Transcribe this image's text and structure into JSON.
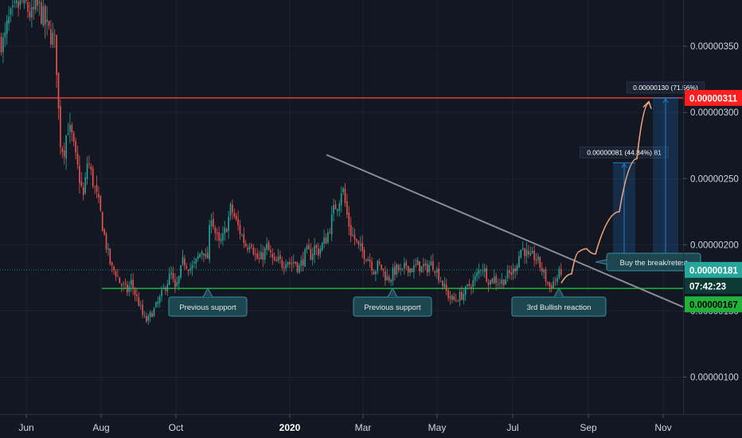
{
  "chart_data": {
    "type": "candlestick",
    "x_axis": {
      "ticks": [
        {
          "label": "Jun",
          "bold": false
        },
        {
          "label": "Aug",
          "bold": false
        },
        {
          "label": "Oct",
          "bold": false
        },
        {
          "label": "2020",
          "bold": true
        },
        {
          "label": "Mar",
          "bold": false
        },
        {
          "label": "May",
          "bold": false
        },
        {
          "label": "Jul",
          "bold": false
        },
        {
          "label": "Sep",
          "bold": false
        },
        {
          "label": "Nov",
          "bold": false
        }
      ]
    },
    "y_axis": {
      "ticks": [
        "0.00000100",
        "0.00000150",
        "0.00000200",
        "0.00000250",
        "0.00000300",
        "0.00000350"
      ],
      "range": [
        7.2e-07,
        3.85e-06
      ]
    },
    "price_close_path": [
      [
        0,
        3.55e-06
      ],
      [
        5,
        3.52e-06
      ],
      [
        10,
        3.68e-06
      ],
      [
        15,
        3.72e-06
      ],
      [
        20,
        3.78e-06
      ],
      [
        25,
        3.82e-06
      ],
      [
        30,
        3.85e-06
      ],
      [
        35,
        3.78e-06
      ],
      [
        40,
        3.72e-06
      ],
      [
        45,
        3.8e-06
      ],
      [
        50,
        3.78e-06
      ],
      [
        55,
        3.7e-06
      ],
      [
        60,
        3.62e-06
      ],
      [
        65,
        3.58e-06
      ],
      [
        70,
        3.5e-06
      ],
      [
        75,
        2.8e-06
      ],
      [
        80,
        2.7e-06
      ],
      [
        85,
        2.9e-06
      ],
      [
        90,
        2.82e-06
      ],
      [
        95,
        2.65e-06
      ],
      [
        100,
        2.5e-06
      ],
      [
        105,
        2.35e-06
      ],
      [
        110,
        2.65e-06
      ],
      [
        115,
        2.52e-06
      ],
      [
        120,
        2.4e-06
      ],
      [
        125,
        2.28e-06
      ],
      [
        130,
        2.1e-06
      ],
      [
        135,
        1.95e-06
      ],
      [
        140,
        1.82e-06
      ],
      [
        145,
        1.8e-06
      ],
      [
        150,
        1.72e-06
      ],
      [
        155,
        1.68e-06
      ],
      [
        160,
        1.65e-06
      ],
      [
        165,
        1.72e-06
      ],
      [
        170,
        1.62e-06
      ],
      [
        175,
        1.55e-06
      ],
      [
        180,
        1.45e-06
      ],
      [
        185,
        1.42e-06
      ],
      [
        190,
        1.48e-06
      ],
      [
        195,
        1.52e-06
      ],
      [
        200,
        1.58e-06
      ],
      [
        205,
        1.65e-06
      ],
      [
        210,
        1.72e-06
      ],
      [
        215,
        1.78e-06
      ],
      [
        220,
        1.65e-06
      ],
      [
        225,
        1.75e-06
      ],
      [
        230,
        1.88e-06
      ],
      [
        235,
        1.85e-06
      ],
      [
        240,
        1.82e-06
      ],
      [
        245,
        1.85e-06
      ],
      [
        250,
        1.92e-06
      ],
      [
        255,
        1.98e-06
      ],
      [
        260,
        1.85e-06
      ],
      [
        265,
        2.25e-06
      ],
      [
        270,
        2.1e-06
      ],
      [
        275,
        2e-06
      ],
      [
        280,
        2.05e-06
      ],
      [
        285,
        2.15e-06
      ],
      [
        290,
        2.28e-06
      ],
      [
        295,
        2.2e-06
      ],
      [
        300,
        2.12e-06
      ],
      [
        305,
        2.05e-06
      ],
      [
        310,
        1.98e-06
      ],
      [
        315,
        2.05e-06
      ],
      [
        320,
        1.92e-06
      ],
      [
        325,
        1.88e-06
      ],
      [
        330,
        1.92e-06
      ],
      [
        335,
        1.98e-06
      ],
      [
        340,
        1.92e-06
      ],
      [
        345,
        1.85e-06
      ],
      [
        350,
        1.88e-06
      ],
      [
        355,
        1.85e-06
      ],
      [
        360,
        1.9e-06
      ],
      [
        365,
        1.85e-06
      ],
      [
        370,
        1.88e-06
      ],
      [
        375,
        1.82e-06
      ],
      [
        380,
        1.88e-06
      ],
      [
        385,
        1.95e-06
      ],
      [
        390,
        1.92e-06
      ],
      [
        395,
        1.98e-06
      ],
      [
        400,
        1.95e-06
      ],
      [
        405,
        2e-06
      ],
      [
        410,
        2.05e-06
      ],
      [
        415,
        2.15e-06
      ],
      [
        420,
        2.28e-06
      ],
      [
        425,
        2.32e-06
      ],
      [
        430,
        2.45e-06
      ],
      [
        435,
        2.25e-06
      ],
      [
        440,
        2.1e-06
      ],
      [
        445,
        2.05e-06
      ],
      [
        450,
        1.98e-06
      ],
      [
        455,
        1.95e-06
      ],
      [
        460,
        1.92e-06
      ],
      [
        465,
        1.88e-06
      ],
      [
        470,
        1.8e-06
      ],
      [
        475,
        1.85e-06
      ],
      [
        480,
        1.82e-06
      ],
      [
        485,
        1.75e-06
      ],
      [
        490,
        1.75e-06
      ],
      [
        495,
        1.8e-06
      ],
      [
        500,
        1.82e-06
      ],
      [
        505,
        1.78e-06
      ],
      [
        510,
        1.85e-06
      ],
      [
        515,
        1.82e-06
      ],
      [
        520,
        1.82e-06
      ],
      [
        525,
        1.85e-06
      ],
      [
        530,
        1.82e-06
      ],
      [
        535,
        1.82e-06
      ],
      [
        540,
        1.85e-06
      ],
      [
        545,
        1.85e-06
      ],
      [
        550,
        1.78e-06
      ],
      [
        555,
        1.72e-06
      ],
      [
        560,
        1.65e-06
      ],
      [
        565,
        1.6e-06
      ],
      [
        570,
        1.58e-06
      ],
      [
        575,
        1.6e-06
      ],
      [
        580,
        1.62e-06
      ],
      [
        585,
        1.65e-06
      ],
      [
        590,
        1.7e-06
      ],
      [
        595,
        1.72e-06
      ],
      [
        600,
        1.78e-06
      ],
      [
        605,
        1.85e-06
      ],
      [
        610,
        1.78e-06
      ],
      [
        615,
        1.72e-06
      ],
      [
        620,
        1.75e-06
      ],
      [
        625,
        1.72e-06
      ],
      [
        630,
        1.72e-06
      ],
      [
        635,
        1.75e-06
      ],
      [
        640,
        1.78e-06
      ],
      [
        645,
        1.8e-06
      ],
      [
        650,
        1.88e-06
      ],
      [
        655,
        1.98e-06
      ],
      [
        660,
        1.95e-06
      ],
      [
        665,
        1.88e-06
      ],
      [
        670,
        1.92e-06
      ],
      [
        675,
        1.88e-06
      ],
      [
        680,
        1.82e-06
      ],
      [
        685,
        1.75e-06
      ],
      [
        690,
        1.68e-06
      ],
      [
        695,
        1.72e-06
      ],
      [
        700,
        1.75e-06
      ],
      [
        705,
        1.81e-06
      ]
    ],
    "trendline": {
      "from": [
        410,
        2.68e-06
      ],
      "to": [
        858,
        1.53e-06
      ]
    },
    "current_price": "0.00000181",
    "countdown": "07:42:23",
    "target_price": "0.00000311",
    "support_price": "0.00000167",
    "measures": [
      {
        "label": "0.00000081 (44.84%) 81",
        "x0": 770,
        "x1": 798,
        "top": 2.62e-06,
        "bottom": 1.81e-06
      },
      {
        "label": "0.00000130 (71.56%)",
        "x0": 820,
        "x1": 852,
        "top": 3.11e-06,
        "bottom": 1.81e-06
      }
    ],
    "arrow_path": [
      [
        705,
        1.71e-06
      ],
      [
        718,
        1.78e-06
      ],
      [
        728,
        1.95e-06
      ],
      [
        737,
        1.97e-06
      ],
      [
        748,
        1.93e-06
      ],
      [
        778,
        2.25e-06
      ],
      [
        800,
        2.65e-06
      ],
      [
        815,
        3.07e-06
      ]
    ],
    "annotations": [
      {
        "text": "Previous support",
        "x": 261,
        "y_point": 1.62e-06
      },
      {
        "text": "Previous support",
        "x": 493,
        "y_point": 1.62e-06
      },
      {
        "text": "3rd Bullish reaction",
        "x": 702,
        "y_point": 1.62e-06
      },
      {
        "text": "Buy the break/retest",
        "x": 807,
        "y_point": 1.87e-06
      }
    ],
    "colors": {
      "up": "#26a69a",
      "down": "#ef5350",
      "background": "#131722",
      "resistance": "#d43a3a",
      "support": "#1aa638",
      "trendline": "#8a8d96",
      "note_fill": "#1d4750",
      "note_border": "#3b8da0",
      "measure": "#1e7fd2",
      "current_badge": "#26a69a",
      "countdown_badge": "#0e3a36",
      "target_badge": "#ff1e1e",
      "support_badge": "#1fb13a"
    }
  }
}
